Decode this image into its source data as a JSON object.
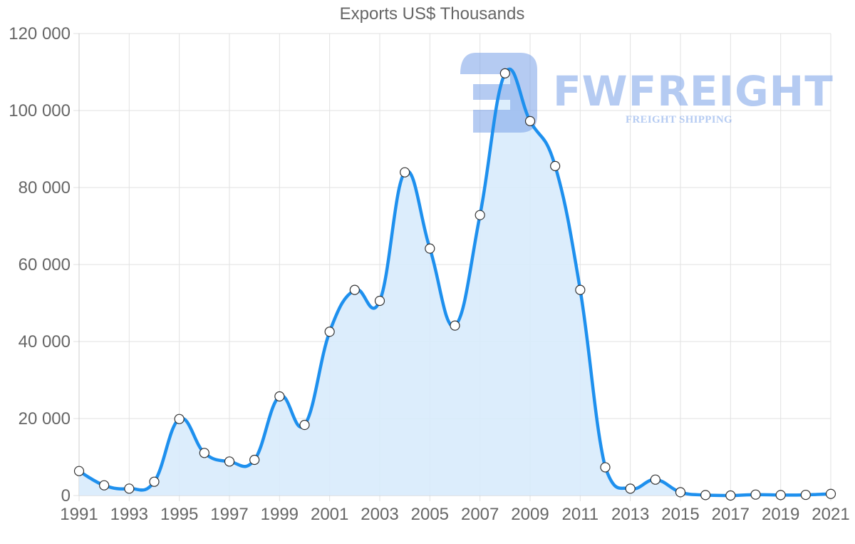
{
  "chart_data": {
    "type": "area",
    "title": "Exports US$ Thousands",
    "xlabel": "",
    "ylabel": "",
    "x": [
      1991,
      1992,
      1993,
      1994,
      1995,
      1996,
      1997,
      1998,
      1999,
      2000,
      2001,
      2002,
      2003,
      2004,
      2005,
      2006,
      2007,
      2008,
      2009,
      2010,
      2011,
      2012,
      2013,
      2014,
      2015,
      2016,
      2017,
      2018,
      2019,
      2020,
      2021
    ],
    "series": [
      {
        "name": "Exports US$ Thousands",
        "values": [
          6350,
          2650,
          1790,
          3580,
          19870,
          11050,
          8830,
          9260,
          25740,
          18330,
          42540,
          53400,
          50560,
          83950,
          64140,
          44140,
          72840,
          109650,
          97250,
          85580,
          53400,
          7330,
          1780,
          4130,
          850,
          120,
          0,
          240,
          120,
          170,
          420
        ],
        "color": "#1e90ee",
        "fill": "#d8ebfc"
      }
    ],
    "ylim": [
      0,
      120000
    ],
    "yticks": [
      0,
      20000,
      40000,
      60000,
      80000,
      100000,
      120000
    ],
    "ytick_labels": [
      "0",
      "20 000",
      "40 000",
      "60 000",
      "80 000",
      "100 000",
      "120 000"
    ],
    "xtick_labels": [
      "1991",
      "1993",
      "1995",
      "1997",
      "1999",
      "2001",
      "2003",
      "2005",
      "2007",
      "2009",
      "2011",
      "2013",
      "2015",
      "2017",
      "2019",
      "2021"
    ],
    "grid": true,
    "legend": null
  },
  "watermark": {
    "brand": "FWFREIGHT",
    "tagline": "FREIGHT SHIPPING"
  }
}
